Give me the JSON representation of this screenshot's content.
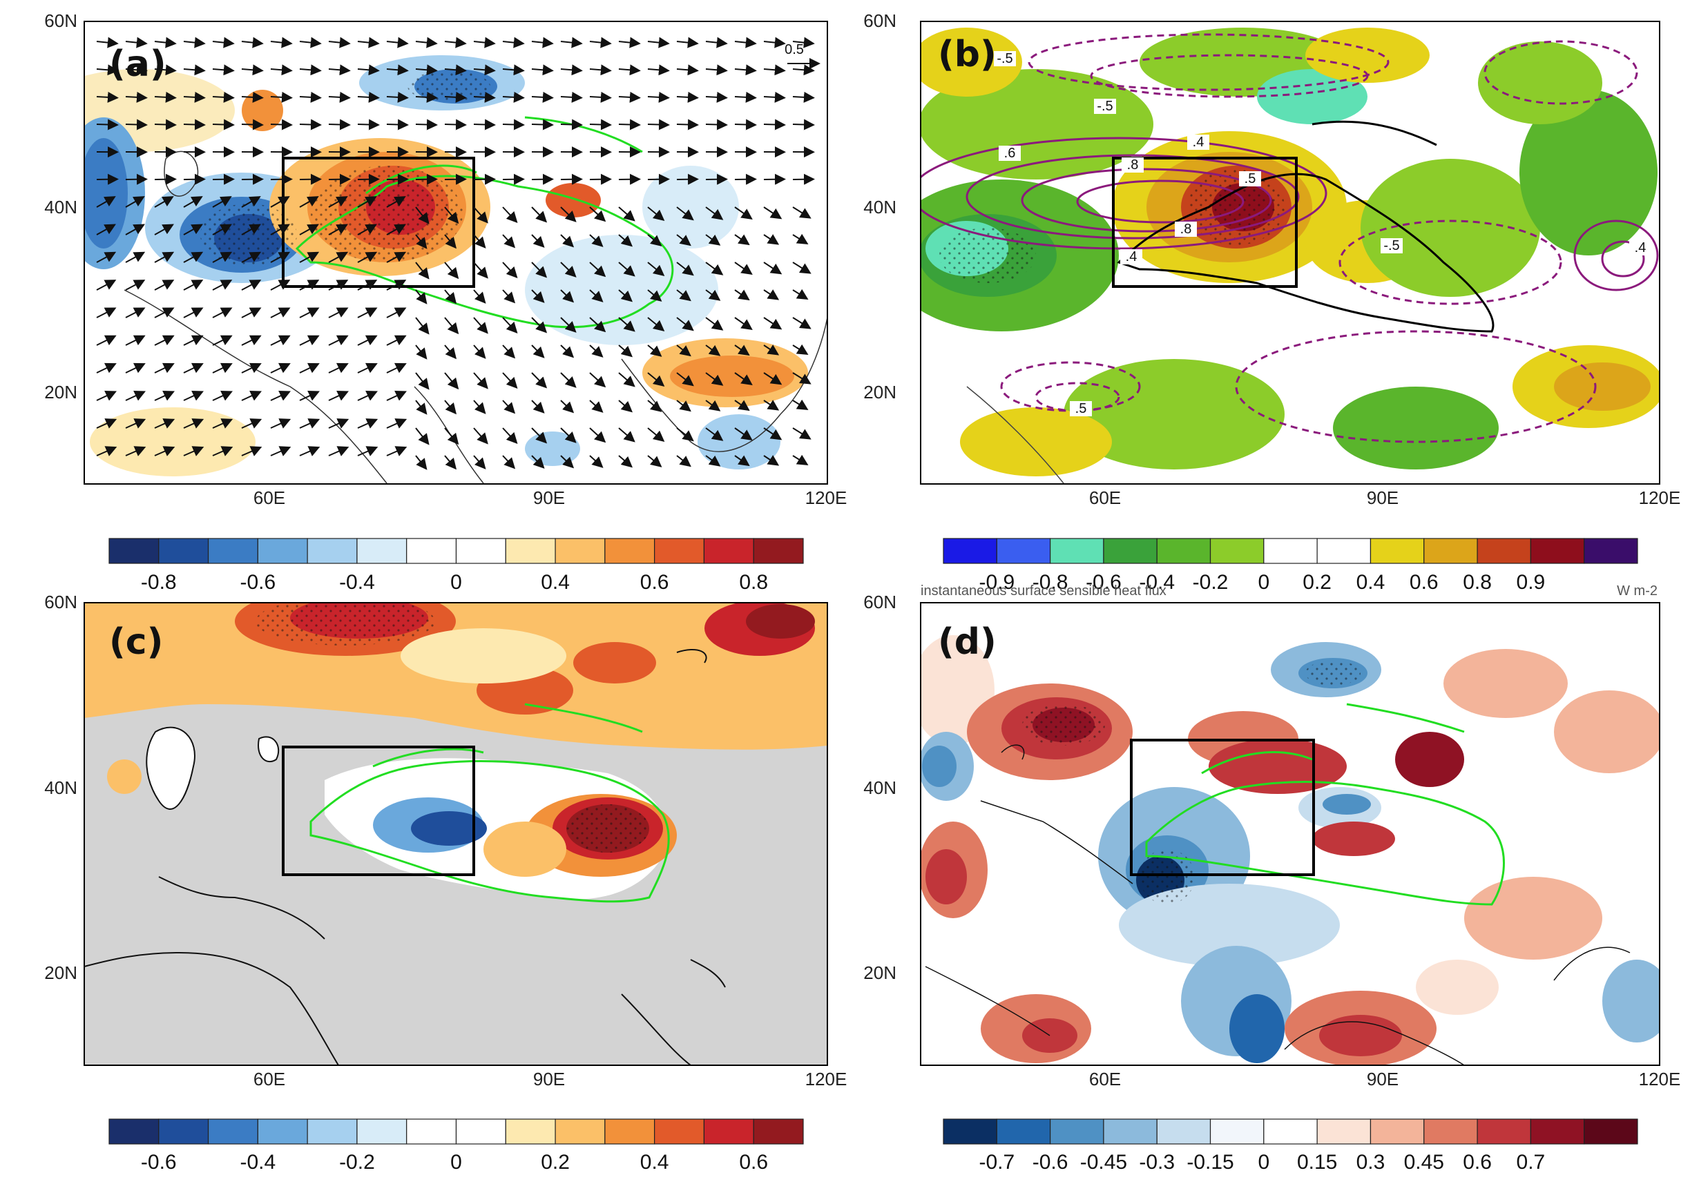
{
  "figure": {
    "panels": [
      {
        "id": "a",
        "label": "(a)",
        "description_type": "anomaly shading with wind vectors",
        "y_ticks": [
          "60N",
          "40N",
          "20N"
        ],
        "x_ticks": [
          "60E",
          "90E",
          "120E"
        ],
        "vector_reference": "0.5",
        "colorbar_labels": [
          "-0.8",
          "-0.6",
          "-0.4",
          "0",
          "0.4",
          "0.6",
          "0.8"
        ],
        "colorbar_colors": [
          "#1a2f6b",
          "#1f4e9b",
          "#3b7cc4",
          "#6aa8dc",
          "#a6d0ef",
          "#d8ecf8",
          "#ffffff",
          "#ffffff",
          "#fde9b0",
          "#fbc068",
          "#f2913a",
          "#e25a2a",
          "#c9242b",
          "#931a1f"
        ]
      },
      {
        "id": "b",
        "label": "(b)",
        "description_type": "anomaly shading with contours",
        "y_ticks": [
          "60N",
          "40N",
          "20N"
        ],
        "x_ticks": [
          "60E",
          "90E",
          "120E"
        ],
        "contour_labels": [
          "-.5",
          "-.5",
          ".6",
          ".8",
          ".4",
          ".4",
          ".8",
          ".5",
          "-.5",
          ".4",
          ".5"
        ],
        "colorbar_labels": [
          "-0.9",
          "-0.8",
          "-0.6",
          "-0.4",
          "-0.2",
          "0",
          "0.2",
          "0.4",
          "0.6",
          "0.8",
          "0.9"
        ],
        "colorbar_colors": [
          "#1a1ae6",
          "#3a5ef0",
          "#5fe0b4",
          "#3aa23a",
          "#5ab52c",
          "#8ccc2a",
          "#ffffff",
          "#ffffff",
          "#e5d21a",
          "#dca51a",
          "#c5421c",
          "#8e0e1c",
          "#3a0d6a"
        ]
      },
      {
        "id": "c",
        "label": "(c)",
        "description_type": "anomaly shading with masked land",
        "y_ticks": [
          "60N",
          "40N",
          "20N"
        ],
        "x_ticks": [
          "60E",
          "90E",
          "120E"
        ],
        "colorbar_labels": [
          "-0.6",
          "-0.4",
          "-0.2",
          "0",
          "0.2",
          "0.4",
          "0.6"
        ],
        "colorbar_colors": [
          "#1a2f6b",
          "#1f4e9b",
          "#3b7cc4",
          "#6aa8dc",
          "#a6d0ef",
          "#d8ecf8",
          "#ffffff",
          "#ffffff",
          "#fde9b0",
          "#fbc068",
          "#f2913a",
          "#e25a2a",
          "#c9242b",
          "#931a1f"
        ]
      },
      {
        "id": "d",
        "label": "(d)",
        "title_partial": "instantaneous surface sensible heat flux",
        "unit_partial": "W m-2",
        "y_ticks": [
          "60N",
          "40N",
          "20N"
        ],
        "x_ticks": [
          "60E",
          "90E",
          "120E"
        ],
        "colorbar_labels": [
          "-0.7",
          "-0.6",
          "-0.45",
          "-0.3",
          "-0.15",
          "0",
          "0.15",
          "0.3",
          "0.45",
          "0.6",
          "0.7"
        ],
        "colorbar_colors": [
          "#0b2f63",
          "#2166ac",
          "#4f91c4",
          "#8cbadc",
          "#c6ddee",
          "#f2f6fb",
          "#ffffff",
          "#fbe3d6",
          "#f3b49a",
          "#e07a62",
          "#c0363b",
          "#8f1224",
          "#5c0719"
        ]
      }
    ]
  },
  "chart_data": [
    {
      "type": "heatmap",
      "panel": "a",
      "title": "",
      "xlabel": "",
      "ylabel": "",
      "x_range": [
        40,
        120
      ],
      "y_range": [
        10,
        60
      ],
      "x_ticks": [
        60,
        90,
        120
      ],
      "y_ticks": [
        20,
        40,
        60
      ],
      "colorbar_levels": [
        -0.9,
        -0.8,
        -0.7,
        -0.6,
        -0.5,
        -0.4,
        -0.3,
        0,
        0.3,
        0.4,
        0.5,
        0.6,
        0.7,
        0.8,
        0.9
      ],
      "box": {
        "lon": [
          61,
          82
        ],
        "lat": [
          32,
          46
        ]
      },
      "reference_vector": 0.5,
      "features": [
        {
          "name": "positive core",
          "lon": 75,
          "lat": 40,
          "value": 0.8
        },
        {
          "name": "negative core",
          "lon": 57,
          "lat": 37,
          "value": -0.8
        },
        {
          "name": "negative west",
          "lon": 42,
          "lat": 42,
          "value": -0.7
        },
        {
          "name": "positive southeast",
          "lon": 108,
          "lat": 21,
          "value": 0.6
        },
        {
          "name": "negative north",
          "lon": 85,
          "lat": 52,
          "value": -0.6
        }
      ]
    },
    {
      "type": "heatmap",
      "panel": "b",
      "x_range": [
        40,
        120
      ],
      "y_range": [
        10,
        60
      ],
      "x_ticks": [
        60,
        90,
        120
      ],
      "y_ticks": [
        20,
        40,
        60
      ],
      "colorbar_levels": [
        -0.9,
        -0.8,
        -0.6,
        -0.4,
        -0.2,
        0,
        0.2,
        0.4,
        0.6,
        0.8,
        0.9
      ],
      "box": {
        "lon": [
          61,
          81
        ],
        "lat": [
          32,
          46
        ]
      },
      "features": [
        {
          "name": "positive core",
          "lon": 76,
          "lat": 40,
          "value": 0.8
        },
        {
          "name": "negative west",
          "lon": 45,
          "lat": 38,
          "value": -0.6
        }
      ]
    },
    {
      "type": "heatmap",
      "panel": "c",
      "x_range": [
        40,
        120
      ],
      "y_range": [
        10,
        60
      ],
      "x_ticks": [
        60,
        90,
        120
      ],
      "y_ticks": [
        20,
        40,
        60
      ],
      "colorbar_levels": [
        -0.7,
        -0.6,
        -0.5,
        -0.4,
        -0.3,
        -0.2,
        -0.1,
        0,
        0.1,
        0.2,
        0.3,
        0.4,
        0.5,
        0.6,
        0.7
      ],
      "box": {
        "lon": [
          61,
          82
        ],
        "lat": [
          31,
          45
        ]
      },
      "features": [
        {
          "name": "negative core",
          "lon": 76,
          "lat": 36,
          "value": -0.6
        },
        {
          "name": "positive east",
          "lon": 95,
          "lat": 35,
          "value": 0.6
        },
        {
          "name": "positive north",
          "lon": 70,
          "lat": 57,
          "value": 0.6
        }
      ]
    },
    {
      "type": "heatmap",
      "panel": "d",
      "x_range": [
        40,
        120
      ],
      "y_range": [
        10,
        60
      ],
      "x_ticks": [
        60,
        90,
        120
      ],
      "y_ticks": [
        20,
        40,
        60
      ],
      "colorbar_levels": [
        -0.7,
        -0.6,
        -0.45,
        -0.3,
        -0.15,
        0,
        0.15,
        0.3,
        0.45,
        0.6,
        0.7
      ],
      "box": {
        "lon": [
          63,
          83
        ],
        "lat": [
          31,
          45
        ]
      },
      "features": [
        {
          "name": "negative west",
          "lon": 65,
          "lat": 32,
          "value": -0.7
        },
        {
          "name": "positive north",
          "lon": 52,
          "lat": 47,
          "value": 0.6
        },
        {
          "name": "positive box",
          "lon": 80,
          "lat": 42,
          "value": 0.6
        }
      ]
    }
  ]
}
